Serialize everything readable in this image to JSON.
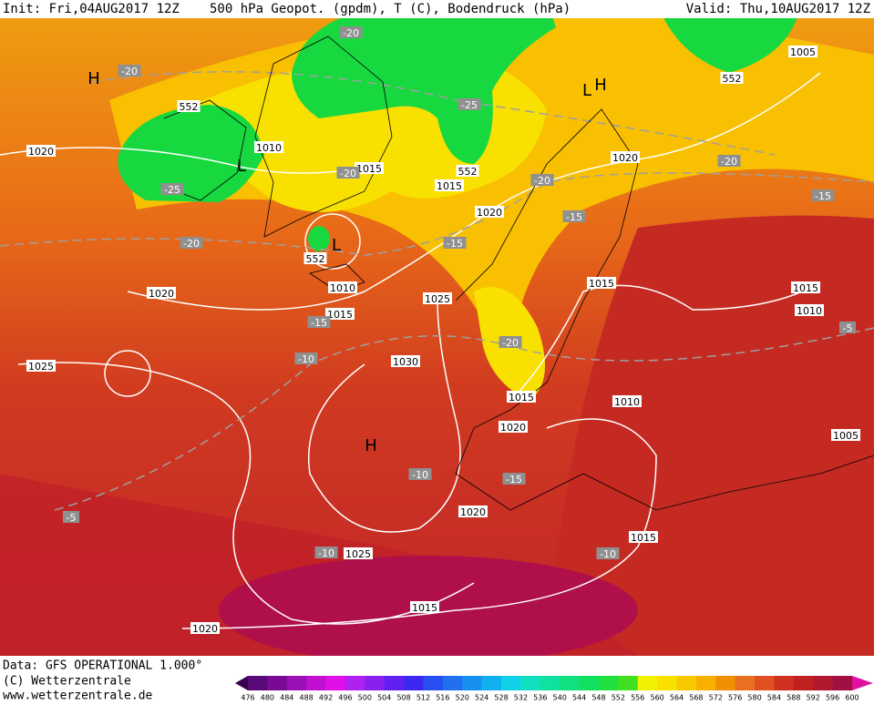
{
  "header": {
    "init": "Init: Fri,04AUG2017 12Z",
    "title": "500 hPa Geopot. (gpdm), T (C), Bodendruck (hPa)",
    "valid": "Valid: Thu,10AUG2017 12Z"
  },
  "footer": {
    "data": "Data: GFS OPERATIONAL 1.000°",
    "copyright": "(C) Wetterzentrale",
    "url": "www.wetterzentrale.de"
  },
  "map": {
    "pressure_labels": [
      1020,
      1010,
      1015,
      1015,
      1020,
      1020,
      1005,
      1020,
      1010,
      1015,
      1025,
      1015,
      1015,
      1010,
      1025,
      1030,
      1015,
      1010,
      1020,
      1005,
      1020,
      1015,
      1025,
      1015,
      1020
    ],
    "temperature_labels": [
      -20,
      -20,
      -25,
      -20,
      -25,
      -20,
      -15,
      -20,
      -15,
      -20,
      -15,
      -15,
      -10,
      -20,
      -5,
      -10,
      -15,
      -5,
      -10,
      -10
    ],
    "height_labels": [
      552,
      552,
      552,
      552
    ],
    "centers": [
      "H",
      "L",
      "L",
      "L",
      "H",
      "H"
    ]
  },
  "colorbar": {
    "ticks": [
      476,
      480,
      484,
      488,
      492,
      496,
      500,
      504,
      508,
      512,
      516,
      520,
      524,
      528,
      532,
      536,
      540,
      544,
      548,
      552,
      556,
      560,
      564,
      568,
      572,
      576,
      580,
      584,
      588,
      592,
      596,
      600
    ],
    "colors": [
      "#3c0050",
      "#5a0a78",
      "#7a0a96",
      "#9a10b4",
      "#c010d0",
      "#e010e8",
      "#b020f0",
      "#8a20f0",
      "#6020f0",
      "#3c28f0",
      "#2850f0",
      "#2070f0",
      "#1890f0",
      "#10b0f0",
      "#10d0e8",
      "#10e0c0",
      "#10e0a0",
      "#10e080",
      "#10e060",
      "#20e040",
      "#40e020",
      "#f0f000",
      "#f8e000",
      "#f8c800",
      "#f8b000",
      "#f09000",
      "#e87020",
      "#e05020",
      "#d03020",
      "#c02020",
      "#b01830",
      "#a01040",
      "#e010a0"
    ]
  }
}
